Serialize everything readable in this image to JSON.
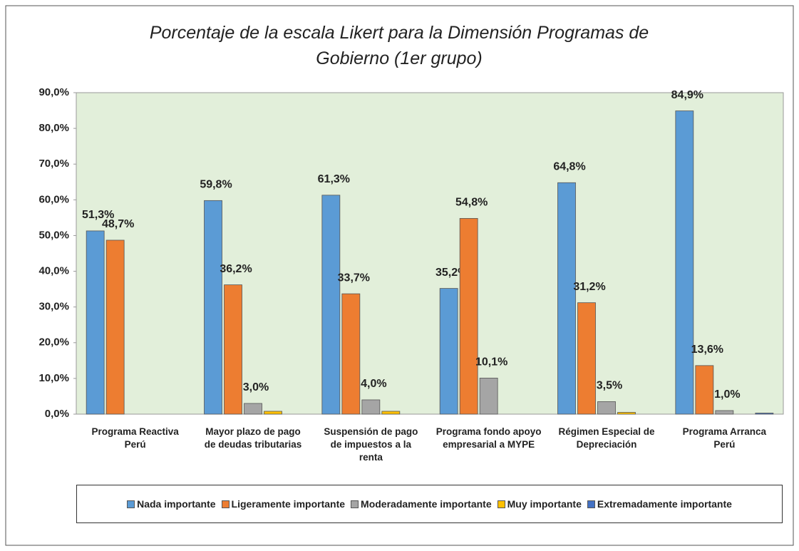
{
  "chart_data": {
    "type": "bar",
    "title": "Porcentaje de la escala Likert para la Dimensión Programas de Gobierno (1er grupo)",
    "categories": [
      "Programa Reactiva Perú",
      "Mayor plazo de pago de deudas tributarias",
      "Suspensión de pago de impuestos a la renta",
      "Programa fondo apoyo empresarial a MYPE",
      "Régimen Especial de Depreciación",
      "Programa Arranca Perú"
    ],
    "series": [
      {
        "name": "Nada importante",
        "color": "#5b9bd5",
        "values": [
          51.3,
          59.8,
          61.3,
          35.2,
          64.8,
          84.9
        ],
        "value_labels": [
          "51,3%",
          "59,8%",
          "61,3%",
          "35,2%",
          "64,8%",
          "84,9%"
        ]
      },
      {
        "name": "Ligeramente importante",
        "color": "#ed7d31",
        "values": [
          48.7,
          36.2,
          33.7,
          54.8,
          31.2,
          13.6
        ],
        "value_labels": [
          "48,7%",
          "36,2%",
          "33,7%",
          "54,8%",
          "31,2%",
          "13,6%"
        ]
      },
      {
        "name": "Moderadamente importante",
        "color": "#a5a5a5",
        "values": [
          null,
          3.0,
          4.0,
          10.1,
          3.5,
          1.0
        ],
        "value_labels": [
          null,
          "3,0%",
          "4,0%",
          "10,1%",
          "3,5%",
          "1,0%"
        ]
      },
      {
        "name": "Muy importante",
        "color": "#ffc000",
        "values": [
          null,
          0.8,
          0.8,
          null,
          0.5,
          null
        ]
      },
      {
        "name": "Extremadamente importante",
        "color": "#4472c4",
        "values": [
          null,
          null,
          null,
          null,
          null,
          0.3
        ]
      }
    ],
    "ylim": [
      0,
      90
    ],
    "yticks": [
      {
        "value": 0,
        "label": "0,0%"
      },
      {
        "value": 10,
        "label": "10,0%"
      },
      {
        "value": 20,
        "label": "20,0%"
      },
      {
        "value": 30,
        "label": "30,0%"
      },
      {
        "value": 40,
        "label": "40,0%"
      },
      {
        "value": 50,
        "label": "50,0%"
      },
      {
        "value": 60,
        "label": "60,0%"
      },
      {
        "value": 70,
        "label": "70,0%"
      },
      {
        "value": 80,
        "label": "80,0%"
      },
      {
        "value": 90,
        "label": "90,0%"
      }
    ],
    "plot_background": "#e2efda",
    "legend": "bottom"
  }
}
